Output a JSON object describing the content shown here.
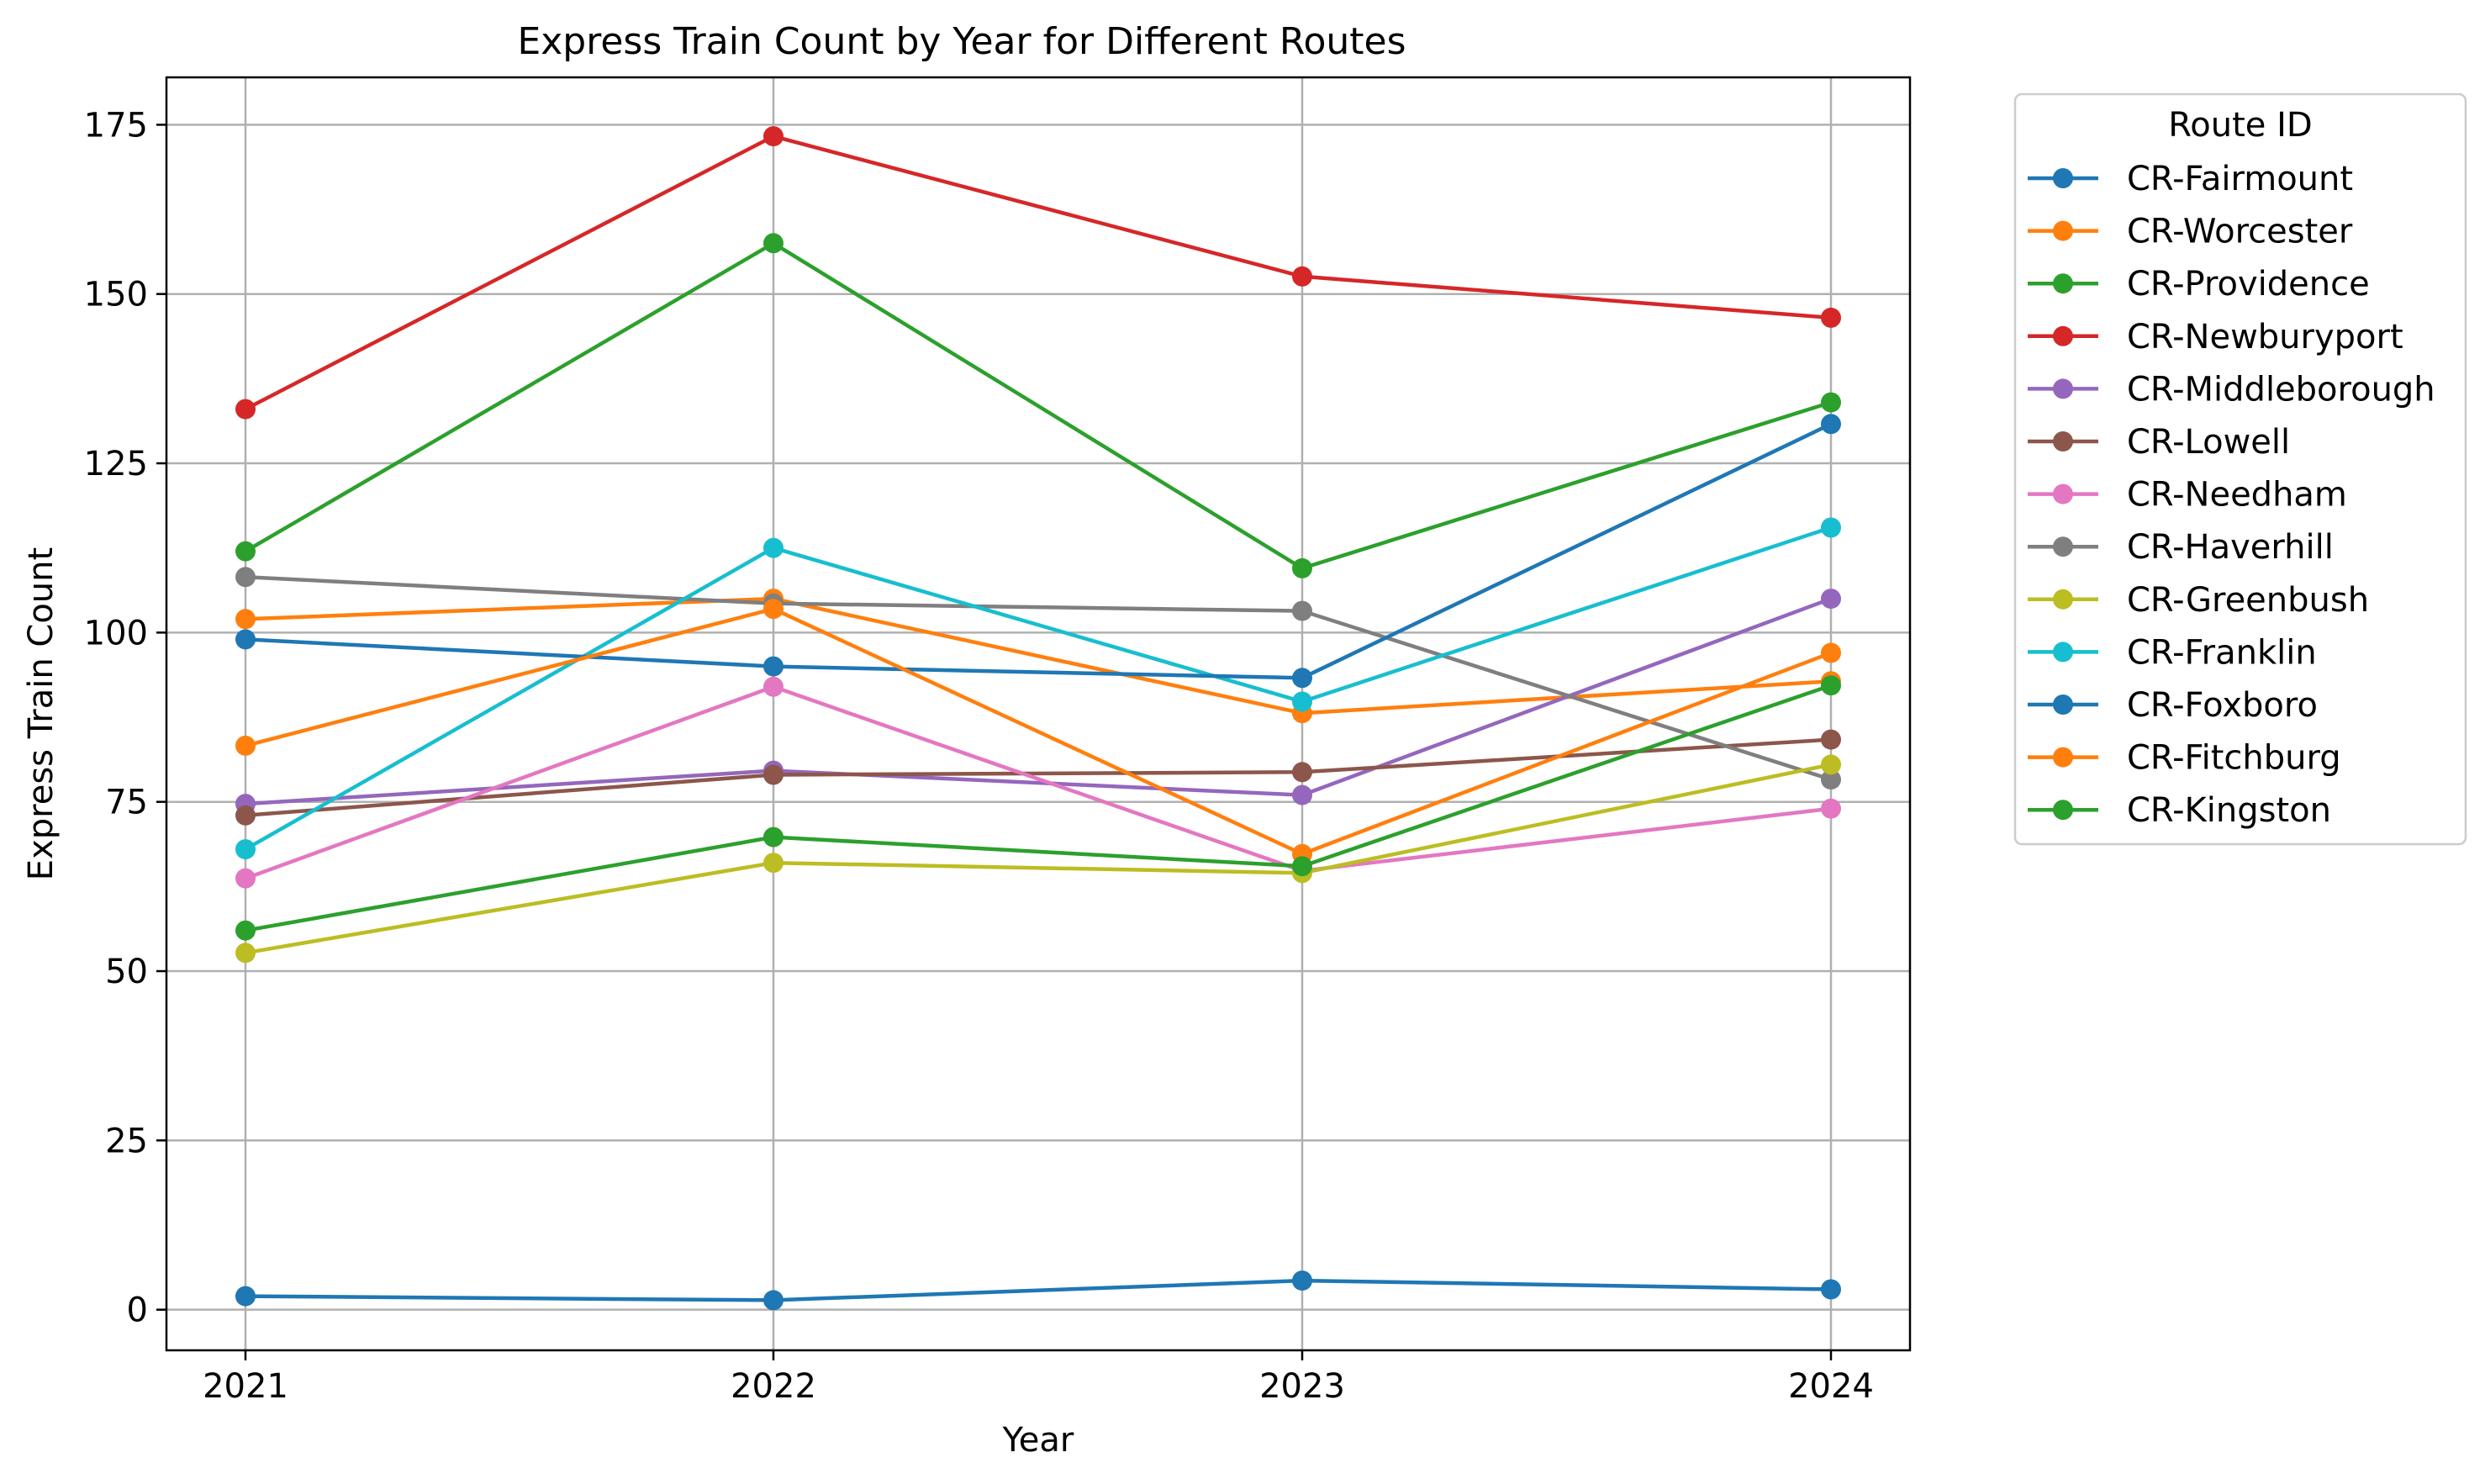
{
  "chart_data": {
    "type": "line",
    "title": "Express Train Count by Year for Different Routes",
    "xlabel": "Year",
    "ylabel": "Express Train Count",
    "x": [
      "2021",
      "2022",
      "2023",
      "2024"
    ],
    "ylim": [
      -6,
      182
    ],
    "yticks": [
      0,
      25,
      50,
      75,
      100,
      125,
      150,
      175
    ],
    "grid": true,
    "legend": {
      "title": "Route ID",
      "placement": "outside right, top"
    },
    "series": [
      {
        "name": "CR-Fairmount",
        "color": "#1f77b4",
        "values": [
          2.0,
          1.4,
          4.3,
          3.0
        ]
      },
      {
        "name": "CR-Worcester",
        "color": "#ff7f0e",
        "values": [
          102.0,
          105.0,
          88.1,
          92.8
        ]
      },
      {
        "name": "CR-Providence",
        "color": "#2ca02c",
        "values": [
          112.0,
          157.5,
          109.5,
          134.0
        ]
      },
      {
        "name": "CR-Newburyport",
        "color": "#d62728",
        "values": [
          133.0,
          173.3,
          152.6,
          146.5
        ]
      },
      {
        "name": "CR-Middleborough",
        "color": "#9467bd",
        "values": [
          74.7,
          79.6,
          76.0,
          105.0
        ]
      },
      {
        "name": "CR-Lowell",
        "color": "#8c564b",
        "values": [
          73.0,
          79.0,
          79.4,
          84.2
        ]
      },
      {
        "name": "CR-Needham",
        "color": "#e377c2",
        "values": [
          63.7,
          92.0,
          64.8,
          74.0
        ]
      },
      {
        "name": "CR-Haverhill",
        "color": "#7f7f7f",
        "values": [
          108.2,
          104.3,
          103.2,
          78.3
        ]
      },
      {
        "name": "CR-Greenbush",
        "color": "#bcbd22",
        "values": [
          52.7,
          66.0,
          64.5,
          80.5
        ]
      },
      {
        "name": "CR-Franklin",
        "color": "#17becf",
        "values": [
          68.0,
          112.5,
          89.8,
          115.5
        ]
      },
      {
        "name": "CR-Foxboro",
        "color": "#1f77b4",
        "values": [
          99.0,
          95.0,
          93.3,
          130.8
        ]
      },
      {
        "name": "CR-Fitchburg",
        "color": "#ff7f0e",
        "values": [
          83.3,
          103.5,
          67.3,
          97.0
        ]
      },
      {
        "name": "CR-Kingston",
        "color": "#2ca02c",
        "values": [
          56.0,
          69.8,
          65.5,
          92.2
        ]
      }
    ]
  }
}
